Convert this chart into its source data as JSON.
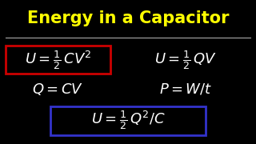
{
  "bg_color": "#000000",
  "title": "Energy in a Capacitor",
  "title_color": "#FFFF00",
  "title_fontsize": 15,
  "formula_color": "#FFFFFF",
  "formula_fontsize": 13,
  "box1_color": "#CC0000",
  "box2_color": "#3333CC",
  "separator_color": "#AAAAAA"
}
